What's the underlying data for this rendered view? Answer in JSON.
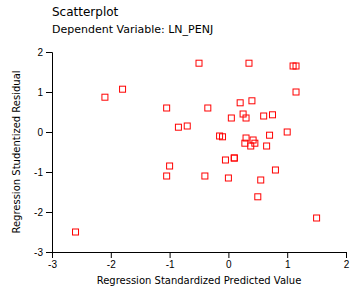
{
  "chart_data": {
    "type": "scatter",
    "title": "Scatterplot",
    "subtitle": "Dependent Variable: LN_PENJ",
    "xlabel": "Regression Standardized Predicted Value",
    "ylabel": "Regression Studentized Residual",
    "color": "#FF0000",
    "marker": "square",
    "x": [
      -2.6,
      -2.1,
      -1.8,
      -1.0,
      -1.05,
      -0.85,
      -0.5,
      -0.4,
      -0.35,
      -0.15,
      -0.1,
      -0.05,
      0.0,
      0.05,
      0.1,
      0.2,
      0.25,
      0.28,
      0.3,
      0.3,
      0.35,
      0.38,
      0.4,
      0.42,
      0.45,
      0.5,
      0.55,
      0.6,
      0.65,
      0.7,
      0.75,
      0.8,
      1.0,
      1.1,
      1.15,
      1.15,
      1.5,
      -0.7,
      -1.05,
      0.1
    ],
    "values": [
      -2.5,
      0.87,
      1.07,
      -0.85,
      0.6,
      0.12,
      1.72,
      -1.1,
      0.6,
      -0.1,
      -0.12,
      -0.7,
      -1.15,
      0.35,
      -0.65,
      0.73,
      0.45,
      -0.28,
      -0.15,
      0.35,
      1.72,
      -0.35,
      0.78,
      -0.2,
      -0.28,
      -1.62,
      -1.2,
      0.4,
      -0.35,
      -0.08,
      0.43,
      -0.95,
      0.0,
      1.65,
      1.65,
      1.0,
      -2.15,
      0.15,
      -1.1,
      -0.65
    ],
    "xlim": [
      -3,
      2
    ],
    "ylim": [
      -3,
      2
    ],
    "xticks": [
      -3,
      -2,
      -1,
      0,
      1,
      2
    ],
    "yticks": [
      -3,
      -2,
      -1,
      0,
      1,
      2
    ]
  }
}
